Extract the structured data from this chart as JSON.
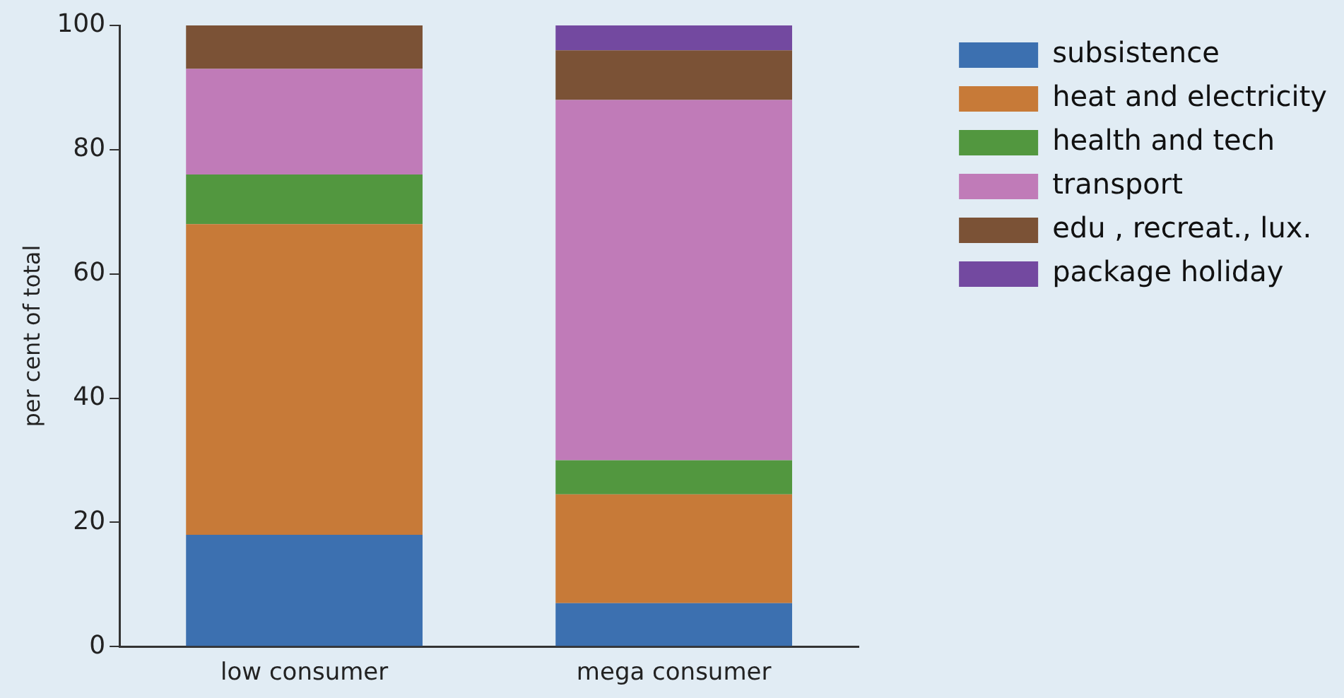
{
  "chart_data": {
    "type": "bar",
    "stacked": true,
    "ylabel": "per cent of total",
    "categories": [
      "low consumer",
      "mega consumer"
    ],
    "series": [
      {
        "name": "subsistence",
        "color": "#3c70b0",
        "values": [
          18,
          7
        ]
      },
      {
        "name": "heat and electricity",
        "color": "#c77a38",
        "values": [
          50,
          17.5
        ]
      },
      {
        "name": "health and tech",
        "color": "#52973f",
        "values": [
          8,
          5.5
        ]
      },
      {
        "name": "transport",
        "color": "#c07bb8",
        "values": [
          17,
          58
        ]
      },
      {
        "name": "edu , recreat., lux.",
        "color": "#7b5236",
        "values": [
          7,
          8
        ]
      },
      {
        "name": "package holiday",
        "color": "#7349a0",
        "values": [
          0,
          4
        ]
      }
    ],
    "ylim": [
      0,
      100
    ],
    "yticks": [
      0,
      20,
      40,
      60,
      80,
      100
    ],
    "grid": false,
    "legend": "right"
  }
}
